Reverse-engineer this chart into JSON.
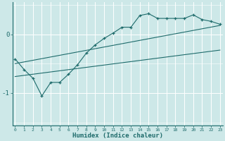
{
  "xlabel": "Humidex (Indice chaleur)",
  "bg_color": "#cde8e8",
  "grid_color": "#b0d8d8",
  "line_color": "#1e6b6b",
  "x_ticks": [
    0,
    1,
    2,
    3,
    4,
    5,
    6,
    7,
    8,
    9,
    10,
    11,
    12,
    13,
    14,
    15,
    16,
    17,
    18,
    19,
    20,
    21,
    22,
    23
  ],
  "y_ticks": [
    0,
    -1
  ],
  "ylim": [
    -1.55,
    0.55
  ],
  "xlim": [
    -0.3,
    23.3
  ],
  "data_x": [
    0,
    1,
    2,
    3,
    4,
    5,
    6,
    7,
    8,
    9,
    10,
    11,
    12,
    13,
    14,
    15,
    16,
    17,
    18,
    19,
    20,
    21,
    22,
    23
  ],
  "data_y": [
    -0.42,
    -0.6,
    -0.75,
    -1.05,
    -0.82,
    -0.82,
    -0.68,
    -0.52,
    -0.32,
    -0.18,
    -0.07,
    0.02,
    0.12,
    0.12,
    0.32,
    0.35,
    0.27,
    0.27,
    0.27,
    0.27,
    0.33,
    0.25,
    0.22,
    0.17
  ],
  "upper_line_x": [
    0,
    23
  ],
  "upper_line_y": [
    -0.5,
    0.15
  ],
  "lower_line_x": [
    0,
    23
  ],
  "lower_line_y": [
    -0.72,
    -0.27
  ]
}
